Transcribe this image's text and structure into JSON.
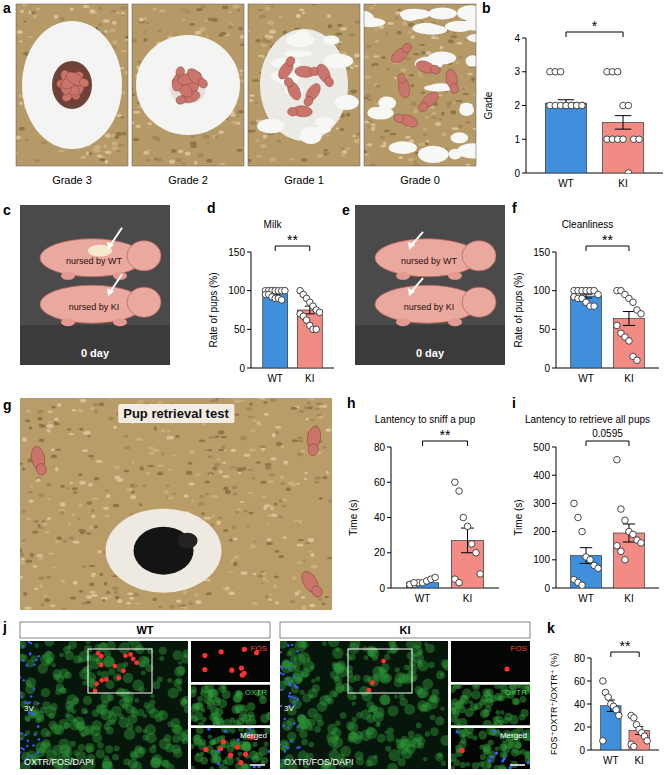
{
  "chart_data": [
    {
      "panel": "b",
      "type": "bar",
      "ylabel": "Grade",
      "categories": [
        "WT",
        "KI"
      ],
      "values": [
        2.07,
        1.5
      ],
      "errors": [
        0.1,
        0.2
      ],
      "points": [
        [
          3,
          3,
          3,
          2,
          2,
          2,
          2,
          2,
          2,
          2,
          2,
          2,
          2,
          2
        ],
        [
          3,
          3,
          3,
          2,
          2,
          1,
          1,
          1,
          1,
          1,
          1,
          0
        ]
      ],
      "colors": [
        "#3f8fdc",
        "#f28b84"
      ],
      "ylim": [
        0,
        4
      ],
      "yticks": [
        0,
        1,
        2,
        3,
        4
      ],
      "annotation": "*"
    },
    {
      "panel": "d",
      "type": "bar",
      "title": "Milk",
      "ylabel": "Rate of pups (%)",
      "categories": [
        "WT",
        "KI"
      ],
      "values": [
        96,
        75
      ],
      "errors": [
        1.5,
        5
      ],
      "points": [
        [
          100,
          100,
          100,
          100,
          100,
          100,
          100,
          95,
          95,
          92,
          90,
          90,
          88
        ],
        [
          100,
          95,
          90,
          85,
          80,
          75,
          72,
          70,
          67,
          62,
          55,
          50,
          50
        ]
      ],
      "colors": [
        "#3f8fdc",
        "#f28b84"
      ],
      "ylim": [
        0,
        150
      ],
      "yticks": [
        0,
        50,
        100,
        150
      ],
      "annotation": "**"
    },
    {
      "panel": "f",
      "type": "bar",
      "title": "Cleanliness",
      "ylabel": "Rate of pups (%)",
      "categories": [
        "WT",
        "KI"
      ],
      "values": [
        93,
        64
      ],
      "errors": [
        2.5,
        9
      ],
      "points": [
        [
          100,
          100,
          100,
          100,
          100,
          100,
          95,
          92,
          90,
          90,
          85,
          80,
          80
        ],
        [
          100,
          100,
          95,
          90,
          85,
          75,
          70,
          55,
          45,
          40,
          35,
          15,
          10
        ]
      ],
      "colors": [
        "#3f8fdc",
        "#f28b84"
      ],
      "ylim": [
        0,
        150
      ],
      "yticks": [
        0,
        50,
        100,
        150
      ],
      "annotation": "**"
    },
    {
      "panel": "h",
      "type": "bar",
      "title": "Lantency to sniff a pup",
      "ylabel": "Time (s)",
      "categories": [
        "WT",
        "KI"
      ],
      "values": [
        3,
        27
      ],
      "errors": [
        0.6,
        7
      ],
      "points": [
        [
          2,
          2,
          3,
          3,
          4,
          5,
          6,
          2,
          3
        ],
        [
          60,
          55,
          40,
          35,
          25,
          20,
          8,
          5,
          3
        ]
      ],
      "colors": [
        "#3f8fdc",
        "#f28b84"
      ],
      "ylim": [
        0,
        80
      ],
      "yticks": [
        0,
        20,
        40,
        60,
        80
      ],
      "annotation": "**"
    },
    {
      "panel": "i",
      "type": "bar",
      "title": "Lantency to retrieve all pups",
      "ylabel": "Time (s)",
      "categories": [
        "WT",
        "KI"
      ],
      "values": [
        115,
        195
      ],
      "errors": [
        28,
        32
      ],
      "points": [
        [
          300,
          250,
          200,
          110,
          100,
          80,
          70,
          30,
          20,
          10
        ],
        [
          455,
          280,
          240,
          200,
          190,
          170,
          160,
          150,
          130,
          100
        ]
      ],
      "colors": [
        "#3f8fdc",
        "#f28b84"
      ],
      "ylim": [
        0,
        500
      ],
      "yticks": [
        0,
        100,
        200,
        300,
        400,
        500
      ],
      "annotation": "0.0595"
    },
    {
      "panel": "k",
      "type": "bar",
      "ylabel": "FOS⁺OXTR⁺/OXTR⁺ (%)",
      "categories": [
        "WT",
        "KI"
      ],
      "values": [
        38.5,
        17
      ],
      "errors": [
        5,
        3.5
      ],
      "points": [
        [
          60,
          50,
          46,
          40,
          38,
          35,
          30,
          8
        ],
        [
          30,
          28,
          22,
          18,
          15,
          12,
          8,
          5,
          3
        ]
      ],
      "colors": [
        "#3f8fdc",
        "#f28b84"
      ],
      "ylim": [
        0,
        80
      ],
      "yticks": [
        0,
        20,
        40,
        60,
        80
      ],
      "annotation": "**"
    }
  ],
  "images": {
    "a": {
      "panel": "a",
      "labels": [
        "Grade 3",
        "Grade 2",
        "Grade 1",
        "Grade 0"
      ]
    },
    "c": {
      "panel": "c",
      "labels": [
        "nursed by WT",
        "nursed by KI"
      ],
      "caption": "0 day"
    },
    "e": {
      "panel": "e",
      "labels": [
        "nursed by WT",
        "nursed by KI"
      ],
      "caption": "0 day"
    },
    "g": {
      "panel": "g",
      "title": "Pup retrieval test"
    },
    "j": {
      "panel": "j",
      "groups": [
        "WT",
        "KI"
      ],
      "stain": "OXTR/FOS/DAPI",
      "insets": [
        "FOS",
        "OXTR",
        "Merged"
      ],
      "region": "3V"
    }
  }
}
